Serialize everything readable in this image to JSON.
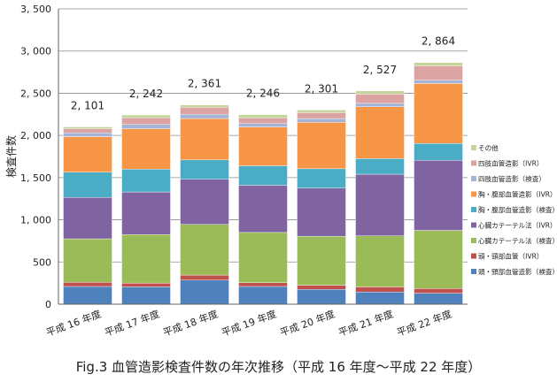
{
  "caption": "Fig.3 血管造影検査件数の年次推移（平成 16 年度〜平成 22 年度）",
  "chart_data": {
    "type": "bar",
    "stacked": true,
    "ylabel": "検査件数",
    "ylim": [
      0,
      3500
    ],
    "yticks": [
      0,
      500,
      1000,
      1500,
      2000,
      2500,
      3000,
      3500
    ],
    "ytick_labels": [
      "0",
      "500",
      "1, 000",
      "1, 500",
      "2, 000",
      "2, 500",
      "3, 000",
      "3, 500"
    ],
    "grid": true,
    "legend_position": "right",
    "categories": [
      "平成 16 年度",
      "平成 17 年度",
      "平成 18 年度",
      "平成 19 年度",
      "平成 20 年度",
      "平成 21 年度",
      "平成 22 年度"
    ],
    "totals": [
      2101,
      2242,
      2361,
      2246,
      2301,
      2527,
      2864
    ],
    "total_labels": [
      "2, 101",
      "2, 242",
      "2, 361",
      "2, 246",
      "2, 301",
      "2, 527",
      "2, 864"
    ],
    "series": [
      {
        "name": "頭・頸部血管造影（検査）",
        "color": "#4f81bd",
        "values": [
          210,
          205,
          285,
          210,
          175,
          145,
          130
        ]
      },
      {
        "name": "頭・頸部血管（IVR）",
        "color": "#c0504d",
        "values": [
          50,
          45,
          60,
          45,
          50,
          60,
          55
        ]
      },
      {
        "name": "心臓カテーテル法（検査）",
        "color": "#9bbb59",
        "values": [
          515,
          575,
          600,
          595,
          580,
          605,
          690
        ]
      },
      {
        "name": "心臓カテーテル法（IVR）",
        "color": "#8064a2",
        "values": [
          490,
          505,
          535,
          560,
          570,
          730,
          830
        ]
      },
      {
        "name": "胸・腹部血管造影（検査）",
        "color": "#4bacc6",
        "values": [
          300,
          270,
          230,
          230,
          230,
          185,
          200
        ]
      },
      {
        "name": "胸・腹部血管造影（IVR）",
        "color": "#f79646",
        "values": [
          420,
          480,
          490,
          460,
          550,
          615,
          710
        ]
      },
      {
        "name": "四肢血管造影（検査）",
        "color": "#a5b4d6",
        "values": [
          45,
          50,
          50,
          40,
          45,
          40,
          40
        ]
      },
      {
        "name": "四肢血管造影（IVR）",
        "color": "#dba3a2",
        "values": [
          50,
          80,
          85,
          70,
          70,
          110,
          170
        ]
      },
      {
        "name": "その他",
        "color": "#c3d69b",
        "values": [
          21,
          32,
          26,
          36,
          31,
          37,
          39
        ]
      }
    ]
  }
}
